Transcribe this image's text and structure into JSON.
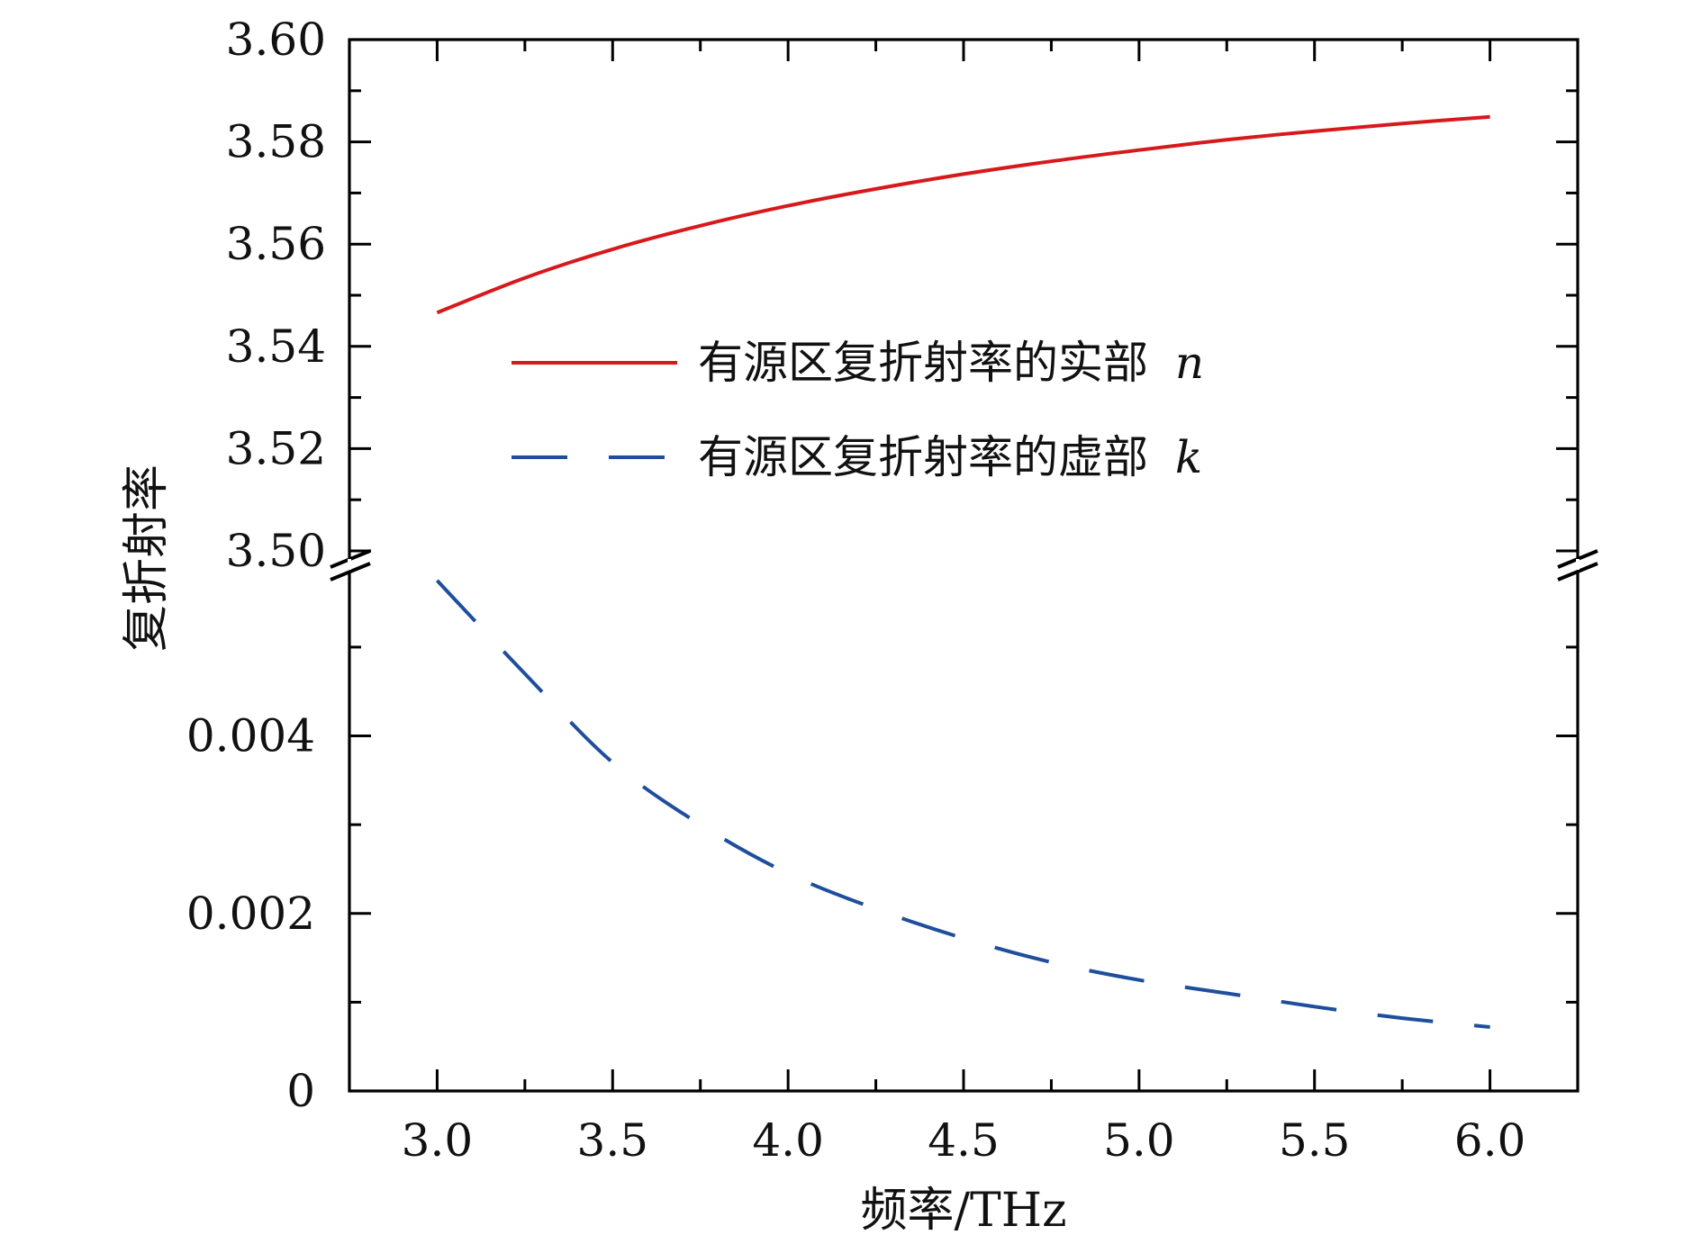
{
  "chart_data": {
    "type": "line",
    "xlabel": "频率/THz",
    "ylabel": "复折射率",
    "xlim": [
      2.75,
      6.25
    ],
    "x_ticks": [
      "3.0",
      "3.5",
      "4.0",
      "4.5",
      "5.0",
      "5.5",
      "6.0"
    ],
    "x_tick_values": [
      3.0,
      3.5,
      4.0,
      4.5,
      5.0,
      5.5,
      6.0
    ],
    "broken_y_axis": true,
    "y_upper": {
      "ylim": [
        3.5,
        3.6
      ],
      "ticks": [
        "3.50",
        "3.52",
        "3.54",
        "3.56",
        "3.58",
        "3.60"
      ],
      "tick_values": [
        3.5,
        3.52,
        3.54,
        3.56,
        3.58,
        3.6
      ]
    },
    "y_lower": {
      "ylim": [
        0,
        0.0058
      ],
      "ticks": [
        "0",
        "0.002",
        "0.004"
      ],
      "tick_values": [
        0,
        0.002,
        0.004
      ]
    },
    "legend_position": "center",
    "grid": false,
    "series": [
      {
        "name": "有源区复折射率的实部",
        "symbol": "n",
        "panel": "upper",
        "color": "#d7191c",
        "line_style": "solid",
        "x": [
          3.0,
          3.25,
          3.5,
          3.75,
          4.0,
          4.25,
          4.5,
          4.75,
          5.0,
          5.25,
          5.5,
          5.75,
          6.0
        ],
        "y": [
          3.5466,
          3.5534,
          3.559,
          3.5636,
          3.5675,
          3.5708,
          3.5737,
          3.5762,
          3.5784,
          3.5804,
          3.5821,
          3.5836,
          3.5849
        ]
      },
      {
        "name": "有源区复折射率的虚部",
        "symbol": "k",
        "panel": "lower",
        "color": "#1f4e9c",
        "line_style": "dashed",
        "x": [
          3.0,
          3.25,
          3.5,
          3.75,
          4.0,
          4.25,
          4.5,
          4.75,
          5.0,
          5.25,
          5.5,
          5.75,
          6.0
        ],
        "y": [
          0.00575,
          0.0047,
          0.0037,
          0.003,
          0.00245,
          0.00205,
          0.00172,
          0.00145,
          0.00125,
          0.0011,
          0.00095,
          0.00082,
          0.00072
        ]
      }
    ]
  }
}
